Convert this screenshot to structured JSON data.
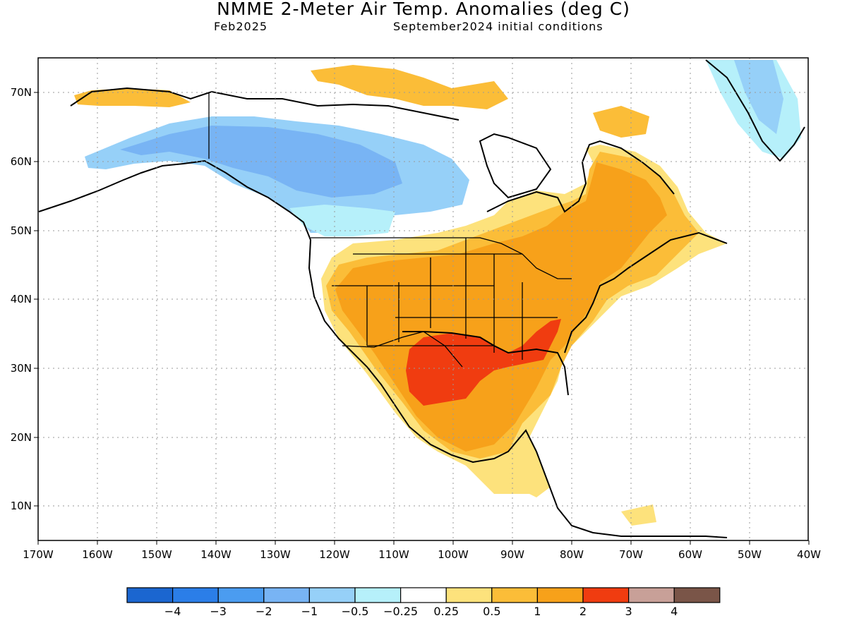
{
  "header": {
    "title": "NMME 2-Meter Air Temp. Anomalies (deg C)",
    "valid_month": "Feb2025",
    "initial_conditions": "September2024 initial conditions"
  },
  "map": {
    "projection": "equirectangular",
    "lon_range": [
      -170,
      -40
    ],
    "lat_range": [
      5,
      75
    ],
    "gridlines": "dotted",
    "lon_ticks": [
      "170W",
      "160W",
      "150W",
      "140W",
      "130W",
      "120W",
      "110W",
      "100W",
      "90W",
      "80W",
      "70W",
      "60W",
      "50W",
      "40W"
    ],
    "lat_ticks": [
      "10N",
      "20N",
      "30N",
      "40N",
      "50N",
      "60N",
      "70N"
    ],
    "anomaly_regions": [
      {
        "level": "2 to 3",
        "color": "#f03c10",
        "description": "Texas / Lower Mississippi / Southeast US"
      },
      {
        "level": "1 to 2",
        "color": "#f7a11a",
        "description": "Southern and central US, Mexico, eastern Canada"
      },
      {
        "level": "0.5 to 1",
        "color": "#fbbd38",
        "description": "Great Lakes, Quebec, western US fringe"
      },
      {
        "level": "0.25 to 0.5",
        "color": "#fde27c",
        "description": "Central America, Baffin Island edges"
      },
      {
        "level": "-1 to -0.5",
        "color": "#96d0f8",
        "description": "Alaska and western Canada"
      },
      {
        "level": "-2 to -1",
        "color": "#78b4f4",
        "description": "Yukon / Northwest Territories core"
      },
      {
        "level": "-0.5 to -0.25",
        "color": "#b6f0fa",
        "description": "Greenland, Alaska fringe"
      }
    ]
  },
  "legend": {
    "colors": [
      "#1b66d0",
      "#2b7ee8",
      "#4b9cf0",
      "#78b4f4",
      "#96d0f8",
      "#b6f0fa",
      "#ffffff",
      "#fde27c",
      "#fbbd38",
      "#f7a11a",
      "#f03c10",
      "#c8a098",
      "#7a5548"
    ],
    "labels": [
      "−4",
      "−3",
      "−2",
      "−1",
      "−0.5",
      "−0.25",
      "0.25",
      "0.5",
      "1",
      "2",
      "3",
      "4"
    ]
  }
}
